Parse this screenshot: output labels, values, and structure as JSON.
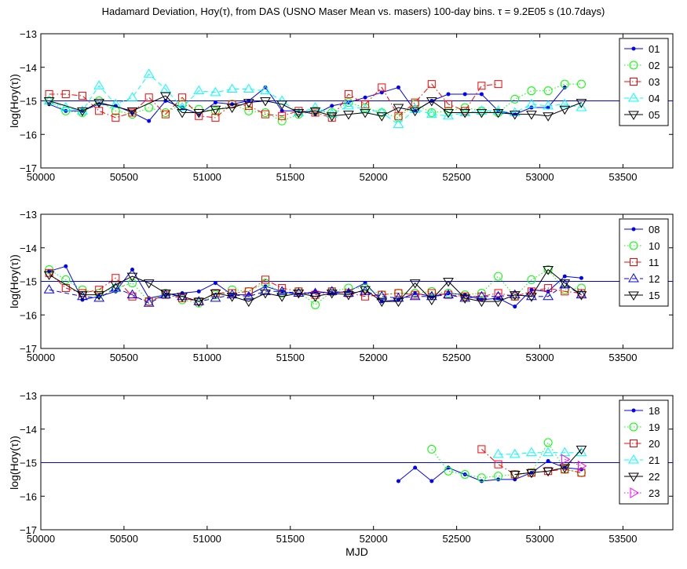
{
  "title": "Hadamard Deviation, Hσy(τ), from DAS (USNO Maser Mean vs. masers) 100-day bins. τ = 9.2E05 s (10.7days)",
  "chart_data": [
    {
      "type": "line",
      "xlim": [
        50000,
        53800
      ],
      "ylim": [
        -17,
        -13
      ],
      "xticks": [
        50000,
        50500,
        51000,
        51500,
        52000,
        52500,
        53000,
        53500
      ],
      "yticks": [
        -13,
        -14,
        -15,
        -16,
        -17
      ],
      "xlabel": "",
      "ylabel": "log(Hσy(τ))",
      "reference_line": -15,
      "legend_position": "top-right",
      "series": [
        {
          "name": "01",
          "color": "#0000ff",
          "marker": "dot",
          "dash": "solid",
          "x": [
            50050,
            50150,
            50250,
            50350,
            50450,
            50550,
            50650,
            50750,
            50850,
            50950,
            51050,
            51150,
            51250,
            51350,
            51450,
            51550,
            51650,
            51750,
            51850,
            51950,
            52050,
            52150,
            52250,
            52350,
            52450,
            52550,
            52650,
            52750,
            52850,
            52950,
            53050,
            53150
          ],
          "y": [
            -15.1,
            -15.3,
            -15.3,
            -15.1,
            -15.15,
            -15.35,
            -15.6,
            -15.0,
            -15.2,
            -15.4,
            -15.05,
            -15.1,
            -15.0,
            -14.6,
            -15.3,
            -15.3,
            -15.4,
            -15.15,
            -15.05,
            -14.9,
            -14.75,
            -14.6,
            -15.3,
            -15.0,
            -14.8,
            -14.8,
            -14.8,
            -15.3,
            -15.4,
            -15.2,
            -15.2,
            -14.6
          ]
        },
        {
          "name": "02",
          "color": "#00ff00",
          "marker": "circle",
          "dash": "dotted",
          "x": [
            50050,
            50150,
            50250,
            50350,
            50450,
            50550,
            50650,
            50750,
            50850,
            50950,
            51050,
            51150,
            51250,
            51350,
            51450,
            51550,
            51650,
            51750,
            51850,
            51950,
            52050,
            52150,
            52250,
            52350,
            52450,
            52550,
            52650,
            52750,
            52850,
            52950,
            53050,
            53150,
            53250
          ],
          "y": [
            -15.0,
            -15.3,
            -15.35,
            -15.0,
            -15.3,
            -15.4,
            -15.2,
            -15.35,
            -15.1,
            -15.25,
            -15.3,
            -15.1,
            -15.3,
            -15.35,
            -15.6,
            -15.4,
            -15.3,
            -15.35,
            -15.05,
            -15.2,
            -15.35,
            -15.5,
            -15.1,
            -15.35,
            -15.3,
            -15.2,
            -15.3,
            -15.35,
            -14.95,
            -14.7,
            -14.7,
            -14.5,
            -14.5
          ]
        },
        {
          "name": "03",
          "color": "#ff0000",
          "marker": "square",
          "dash": "dashdot",
          "x": [
            50050,
            50150,
            50250,
            50350,
            50450,
            50550,
            50650,
            50750,
            50850,
            50950,
            51050,
            51150,
            51250,
            51350,
            51450,
            51550,
            51650,
            51750,
            51850,
            51950,
            52050,
            52150,
            52250,
            52350,
            52450,
            52550,
            52650,
            52750
          ],
          "y": [
            -14.8,
            -14.8,
            -14.85,
            -15.3,
            -15.5,
            -15.35,
            -14.9,
            -15.4,
            -14.9,
            -15.45,
            -15.5,
            -15.1,
            -15.15,
            -15.4,
            -15.45,
            -15.3,
            -15.35,
            -15.5,
            -14.8,
            -15.1,
            -14.6,
            -15.45,
            -15.05,
            -14.5,
            -15.1,
            -15.3,
            -14.55,
            -14.5
          ]
        },
        {
          "name": "04",
          "color": "#00ffff",
          "marker": "triangle-up",
          "dash": "dashed",
          "x": [
            50050,
            50150,
            50250,
            50350,
            50450,
            50550,
            50650,
            50750,
            50850,
            50950,
            51050,
            51150,
            51250,
            51350,
            51450,
            51550,
            51650,
            51750,
            51850,
            51950,
            52050,
            52150,
            52250,
            52350,
            52450,
            52550,
            52650,
            52750,
            52850,
            52950,
            53050,
            53150,
            53250
          ],
          "y": [
            -15.0,
            -15.2,
            -15.3,
            -14.55,
            -15.1,
            -14.9,
            -14.2,
            -14.65,
            -15.2,
            -14.7,
            -14.75,
            -14.65,
            -14.65,
            -14.7,
            -15.0,
            -15.35,
            -15.2,
            -15.4,
            -15.15,
            -15.25,
            -15.35,
            -15.7,
            -15.25,
            -15.4,
            -15.45,
            -15.35,
            -15.3,
            -15.3,
            -15.35,
            -15.1,
            -15.15,
            -15.1,
            -15.2
          ]
        },
        {
          "name": "05",
          "color": "#000000",
          "marker": "triangle-down",
          "dash": "solid",
          "x": [
            50050,
            50250,
            50350,
            50550,
            50750,
            50850,
            50950,
            51050,
            51150,
            51250,
            51350,
            51450,
            51550,
            51650,
            51750,
            51850,
            51950,
            52050,
            52150,
            52250,
            52350,
            52450,
            52550,
            52650,
            52750,
            52850,
            52950,
            53050,
            53150,
            53250
          ],
          "y": [
            -15.0,
            -15.3,
            -15.05,
            -15.3,
            -14.85,
            -15.35,
            -15.35,
            -15.25,
            -15.2,
            -15.05,
            -15.0,
            -15.1,
            -15.35,
            -15.3,
            -15.45,
            -15.4,
            -15.35,
            -15.45,
            -15.2,
            -15.3,
            -15.0,
            -15.35,
            -15.35,
            -15.35,
            -15.35,
            -15.4,
            -15.4,
            -15.45,
            -15.25,
            -15.05
          ]
        }
      ]
    },
    {
      "type": "line",
      "xlim": [
        50000,
        53800
      ],
      "ylim": [
        -17,
        -13
      ],
      "xticks": [
        50000,
        50500,
        51000,
        51500,
        52000,
        52500,
        53000,
        53500
      ],
      "yticks": [
        -13,
        -14,
        -15,
        -16,
        -17
      ],
      "xlabel": "",
      "ylabel": "log(Hσy(τ))",
      "reference_line": -15,
      "legend_position": "top-right",
      "series": [
        {
          "name": "08",
          "color": "#0000ff",
          "marker": "dot",
          "dash": "solid",
          "x": [
            50050,
            50150,
            50250,
            50350,
            50450,
            50550,
            50650,
            50750,
            50850,
            50950,
            51050,
            51150,
            51250,
            51350,
            51450,
            51550,
            51650,
            51750,
            51850,
            51950,
            52050,
            52150,
            52250,
            52350,
            52450,
            52550,
            52650,
            52750,
            52850,
            52950,
            53050,
            53150,
            53250
          ],
          "y": [
            -14.7,
            -14.55,
            -15.55,
            -15.45,
            -15.3,
            -14.65,
            -15.5,
            -15.4,
            -15.35,
            -15.3,
            -15.05,
            -15.4,
            -15.4,
            -15.15,
            -15.3,
            -15.4,
            -15.3,
            -15.35,
            -15.3,
            -15.05,
            -15.6,
            -15.55,
            -15.35,
            -15.45,
            -15.35,
            -15.4,
            -15.55,
            -15.5,
            -15.75,
            -15.25,
            -15.3,
            -14.85,
            -14.9
          ]
        },
        {
          "name": "10",
          "color": "#00ff00",
          "marker": "circle",
          "dash": "dotted",
          "x": [
            50050,
            50150,
            50250,
            50350,
            50450,
            50550,
            50650,
            50750,
            50850,
            50950,
            51050,
            51150,
            51250,
            51350,
            51450,
            51550,
            51650,
            51750,
            51850,
            51950,
            52050,
            52150,
            52250,
            52350,
            52450,
            52550,
            52650,
            52750,
            52850,
            52950,
            53050,
            53150,
            53250
          ],
          "y": [
            -14.65,
            -14.95,
            -15.25,
            -15.35,
            -15.2,
            -15.05,
            -15.6,
            -15.35,
            -15.55,
            -15.65,
            -15.4,
            -15.25,
            -15.3,
            -15.05,
            -15.35,
            -15.3,
            -15.7,
            -15.3,
            -15.2,
            -15.2,
            -15.4,
            -15.35,
            -15.35,
            -15.3,
            -15.35,
            -15.4,
            -15.35,
            -14.85,
            -15.45,
            -14.95,
            -14.65,
            -15.25,
            -15.2
          ]
        },
        {
          "name": "11",
          "color": "#ff0000",
          "marker": "square",
          "dash": "dashdot",
          "x": [
            50050,
            50150,
            50250,
            50350,
            50450,
            50550,
            50650,
            50750,
            50850,
            50950,
            51050,
            51150,
            51250,
            51350,
            51450,
            51550,
            51650,
            51750,
            51850,
            51950,
            52050,
            52150,
            52250,
            52350,
            52450,
            52550,
            52650,
            52750,
            52850,
            52950,
            53050,
            53150,
            53250
          ],
          "y": [
            -14.75,
            -15.2,
            -15.35,
            -15.25,
            -14.9,
            -15.45,
            -15.6,
            -15.4,
            -15.5,
            -15.6,
            -15.35,
            -15.35,
            -15.3,
            -14.95,
            -15.2,
            -15.3,
            -15.4,
            -15.3,
            -15.35,
            -15.45,
            -15.4,
            -15.35,
            -15.4,
            -15.35,
            -15.4,
            -15.45,
            -15.45,
            -15.35,
            -15.45,
            -15.3,
            -15.2,
            -15.3,
            -15.35
          ]
        },
        {
          "name": "12",
          "color": "#0000ff",
          "marker": "triangle-up",
          "dash": "dashed",
          "x": [
            50050,
            50250,
            50350,
            50450,
            50550,
            50650,
            50750,
            50850,
            50950,
            51050,
            51150,
            51250,
            51350,
            51450,
            51550,
            51650,
            51750,
            51850,
            51950,
            52050,
            52150,
            52250,
            52350,
            52450,
            52550,
            52650,
            52750,
            52850,
            52950,
            53050,
            53150,
            53250
          ],
          "y": [
            -15.25,
            -15.45,
            -15.5,
            -15.2,
            -15.4,
            -15.65,
            -15.4,
            -15.45,
            -15.6,
            -15.5,
            -15.4,
            -15.45,
            -15.3,
            -15.3,
            -15.35,
            -15.35,
            -15.3,
            -15.35,
            -15.3,
            -15.45,
            -15.5,
            -15.45,
            -15.45,
            -15.4,
            -15.5,
            -15.45,
            -15.45,
            -15.4,
            -15.45,
            -15.45,
            -15.1,
            -15.4
          ]
        },
        {
          "name": "15",
          "color": "#000000",
          "marker": "triangle-down",
          "dash": "solid",
          "x": [
            50050,
            50250,
            50350,
            50450,
            50550,
            50650,
            50750,
            50850,
            50950,
            51050,
            51150,
            51250,
            51350,
            51450,
            51550,
            51650,
            51750,
            51850,
            51950,
            52050,
            52150,
            52250,
            52350,
            52450,
            52550,
            52650,
            52750,
            52850,
            52950,
            53050,
            53150,
            53250
          ],
          "y": [
            -14.8,
            -15.4,
            -15.4,
            -15.1,
            -14.85,
            -15.05,
            -15.35,
            -15.45,
            -15.6,
            -15.35,
            -15.45,
            -15.6,
            -15.35,
            -15.45,
            -15.35,
            -15.45,
            -15.35,
            -15.4,
            -15.25,
            -15.6,
            -15.6,
            -15.05,
            -15.55,
            -15.0,
            -15.5,
            -15.6,
            -15.6,
            -15.4,
            -15.45,
            -14.65,
            -15.05,
            -15.4
          ]
        }
      ]
    },
    {
      "type": "line",
      "xlim": [
        50000,
        53800
      ],
      "ylim": [
        -17,
        -13
      ],
      "xticks": [
        50000,
        50500,
        51000,
        51500,
        52000,
        52500,
        53000,
        53500
      ],
      "yticks": [
        -13,
        -14,
        -15,
        -16,
        -17
      ],
      "xlabel": "MJD",
      "ylabel": "log(Hσy(τ))",
      "reference_line": -15,
      "legend_position": "top-right",
      "series": [
        {
          "name": "18",
          "color": "#0000ff",
          "marker": "dot",
          "dash": "solid",
          "x": [
            52150,
            52250,
            52350,
            52450,
            52550,
            52650,
            52750,
            52850,
            52950,
            53050,
            53150,
            53250
          ],
          "y": [
            -15.55,
            -15.15,
            -15.55,
            -15.15,
            -15.35,
            -15.55,
            -15.5,
            -15.5,
            -15.3,
            -14.95,
            -15.15,
            -15.2
          ]
        },
        {
          "name": "19",
          "color": "#00ff00",
          "marker": "circle",
          "dash": "dotted",
          "x": [
            52350,
            52450,
            52550,
            52650,
            52750,
            52850,
            52950,
            53050,
            53150,
            53250
          ],
          "y": [
            -14.6,
            -15.25,
            -15.35,
            -15.45,
            -15.4,
            -15.35,
            -15.3,
            -14.4,
            -15.2,
            -15.3
          ]
        },
        {
          "name": "20",
          "color": "#ff0000",
          "marker": "square",
          "dash": "dashdot",
          "x": [
            52650,
            52750,
            52850,
            52950,
            53050,
            53150,
            53250
          ],
          "y": [
            -14.6,
            -15.05,
            -15.35,
            -15.3,
            -15.25,
            -15.2,
            -15.3
          ]
        },
        {
          "name": "21",
          "color": "#00ffff",
          "marker": "triangle-up",
          "dash": "dashed",
          "x": [
            52750,
            52850,
            52950,
            53050,
            53150,
            53250
          ],
          "y": [
            -14.75,
            -14.75,
            -14.7,
            -14.7,
            -14.7,
            -14.7
          ]
        },
        {
          "name": "22",
          "color": "#000000",
          "marker": "triangle-down",
          "dash": "solid",
          "x": [
            52850,
            52950,
            53050,
            53150,
            53250
          ],
          "y": [
            -15.35,
            -15.3,
            -15.25,
            -15.15,
            -14.6
          ]
        },
        {
          "name": "23",
          "color": "#ff00ff",
          "marker": "triangle-right",
          "dash": "dotted",
          "x": [
            53150,
            53250
          ],
          "y": [
            -14.9,
            -15.1
          ]
        }
      ]
    }
  ]
}
